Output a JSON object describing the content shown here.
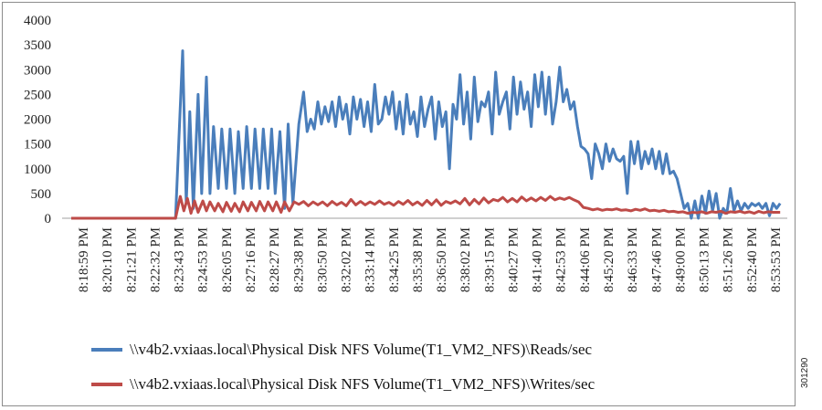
{
  "figure_id": "301290",
  "chart_data": {
    "type": "line",
    "title": "",
    "xlabel": "",
    "ylabel": "",
    "ylim": [
      0,
      4000
    ],
    "yticks": [
      0,
      500,
      1000,
      1500,
      2000,
      2500,
      3000,
      3500,
      4000
    ],
    "grid": false,
    "legend_position": "bottom",
    "x_tick_labels": [
      "8:18:59 PM",
      "8:20:10 PM",
      "8:21:21 PM",
      "8:22:32 PM",
      "8:23:43 PM",
      "8:24:53 PM",
      "8:26:05 PM",
      "8:27:16 PM",
      "8:28:27 PM",
      "8:29:38 PM",
      "8:30:50 PM",
      "8:32:02 PM",
      "8:33:14 PM",
      "8:34:25 PM",
      "8:35:38 PM",
      "8:36:50 PM",
      "8:38:02 PM",
      "8:39:15 PM",
      "8:40:27 PM",
      "8:41:40 PM",
      "8:42:53 PM",
      "8:44:06 PM",
      "8:45:20 PM",
      "8:46:33 PM",
      "8:47:46 PM",
      "8:49:00 PM",
      "8:50:13 PM",
      "8:51:26 PM",
      "8:52:40 PM",
      "8:53:53 PM"
    ],
    "x_range": [
      0,
      30.2
    ],
    "series": [
      {
        "name": "\\\\v4b2.vxiaas.local\\Physical Disk NFS Volume(T1_VM2_NFS)\\Reads/sec",
        "color": "#4a7ebb",
        "points": [
          [
            0,
            0
          ],
          [
            4.4,
            0
          ],
          [
            4.7,
            3380
          ],
          [
            4.85,
            300
          ],
          [
            5.0,
            2150
          ],
          [
            5.15,
            200
          ],
          [
            5.35,
            2500
          ],
          [
            5.5,
            500
          ],
          [
            5.7,
            2850
          ],
          [
            5.85,
            500
          ],
          [
            6.0,
            1850
          ],
          [
            6.2,
            600
          ],
          [
            6.35,
            1800
          ],
          [
            6.55,
            600
          ],
          [
            6.7,
            1800
          ],
          [
            6.9,
            500
          ],
          [
            7.05,
            1750
          ],
          [
            7.25,
            600
          ],
          [
            7.4,
            1850
          ],
          [
            7.6,
            600
          ],
          [
            7.75,
            1800
          ],
          [
            7.95,
            600
          ],
          [
            8.1,
            1800
          ],
          [
            8.3,
            600
          ],
          [
            8.45,
            1800
          ],
          [
            8.6,
            500
          ],
          [
            8.8,
            1750
          ],
          [
            9.0,
            200
          ],
          [
            9.15,
            1900
          ],
          [
            9.35,
            300
          ],
          [
            9.6,
            1900
          ],
          [
            9.8,
            2550
          ],
          [
            9.95,
            1750
          ],
          [
            10.1,
            2000
          ],
          [
            10.25,
            1800
          ],
          [
            10.4,
            2350
          ],
          [
            10.55,
            1900
          ],
          [
            10.7,
            2250
          ],
          [
            10.85,
            1950
          ],
          [
            11.0,
            2350
          ],
          [
            11.15,
            1850
          ],
          [
            11.3,
            2450
          ],
          [
            11.45,
            2000
          ],
          [
            11.6,
            2300
          ],
          [
            11.75,
            1700
          ],
          [
            11.9,
            2450
          ],
          [
            12.05,
            2000
          ],
          [
            12.2,
            2400
          ],
          [
            12.35,
            1850
          ],
          [
            12.5,
            2350
          ],
          [
            12.65,
            1750
          ],
          [
            12.8,
            2700
          ],
          [
            12.95,
            1900
          ],
          [
            13.1,
            2000
          ],
          [
            13.25,
            2450
          ],
          [
            13.4,
            2100
          ],
          [
            13.55,
            2550
          ],
          [
            13.7,
            1800
          ],
          [
            13.85,
            2350
          ],
          [
            14.0,
            1700
          ],
          [
            14.15,
            2500
          ],
          [
            14.3,
            1900
          ],
          [
            14.45,
            2150
          ],
          [
            14.6,
            1650
          ],
          [
            14.75,
            2450
          ],
          [
            14.9,
            1850
          ],
          [
            15.05,
            2200
          ],
          [
            15.2,
            2450
          ],
          [
            15.35,
            1600
          ],
          [
            15.5,
            2350
          ],
          [
            15.65,
            1850
          ],
          [
            15.8,
            2150
          ],
          [
            15.95,
            1000
          ],
          [
            16.1,
            2300
          ],
          [
            16.25,
            2000
          ],
          [
            16.4,
            2900
          ],
          [
            16.55,
            1900
          ],
          [
            16.7,
            2550
          ],
          [
            16.85,
            1600
          ],
          [
            17.0,
            2850
          ],
          [
            17.15,
            1950
          ],
          [
            17.3,
            2350
          ],
          [
            17.45,
            2250
          ],
          [
            17.6,
            2550
          ],
          [
            17.75,
            1700
          ],
          [
            17.9,
            2950
          ],
          [
            18.05,
            2100
          ],
          [
            18.2,
            2350
          ],
          [
            18.35,
            2550
          ],
          [
            18.5,
            1800
          ],
          [
            18.65,
            2850
          ],
          [
            18.8,
            2100
          ],
          [
            18.95,
            2750
          ],
          [
            19.1,
            2200
          ],
          [
            19.25,
            2550
          ],
          [
            19.4,
            1850
          ],
          [
            19.55,
            2900
          ],
          [
            19.7,
            2250
          ],
          [
            19.85,
            2950
          ],
          [
            20.0,
            2100
          ],
          [
            20.15,
            2850
          ],
          [
            20.3,
            1900
          ],
          [
            20.45,
            2350
          ],
          [
            20.6,
            3050
          ],
          [
            20.75,
            2350
          ],
          [
            20.9,
            2600
          ],
          [
            21.05,
            2200
          ],
          [
            21.2,
            2350
          ],
          [
            21.35,
            1850
          ],
          [
            21.5,
            1450
          ],
          [
            21.65,
            1400
          ],
          [
            21.8,
            1300
          ],
          [
            21.95,
            800
          ],
          [
            22.1,
            1500
          ],
          [
            22.25,
            1300
          ],
          [
            22.4,
            1000
          ],
          [
            22.55,
            1500
          ],
          [
            22.7,
            1150
          ],
          [
            22.85,
            1400
          ],
          [
            23.0,
            1200
          ],
          [
            23.15,
            1150
          ],
          [
            23.3,
            1250
          ],
          [
            23.45,
            500
          ],
          [
            23.6,
            1550
          ],
          [
            23.75,
            1100
          ],
          [
            23.9,
            1550
          ],
          [
            24.05,
            1000
          ],
          [
            24.2,
            1350
          ],
          [
            24.35,
            1100
          ],
          [
            24.5,
            1400
          ],
          [
            24.65,
            1000
          ],
          [
            24.8,
            1350
          ],
          [
            24.95,
            900
          ],
          [
            25.1,
            1300
          ],
          [
            25.25,
            900
          ],
          [
            25.4,
            950
          ],
          [
            25.55,
            800
          ],
          [
            25.7,
            500
          ],
          [
            25.85,
            200
          ],
          [
            26.0,
            300
          ],
          [
            26.15,
            0
          ],
          [
            26.3,
            350
          ],
          [
            26.45,
            0
          ],
          [
            26.6,
            450
          ],
          [
            26.75,
            100
          ],
          [
            26.9,
            550
          ],
          [
            27.05,
            150
          ],
          [
            27.2,
            500
          ],
          [
            27.35,
            0
          ],
          [
            27.5,
            200
          ],
          [
            27.65,
            100
          ],
          [
            27.8,
            600
          ],
          [
            27.95,
            150
          ],
          [
            28.1,
            350
          ],
          [
            28.25,
            150
          ],
          [
            28.4,
            300
          ],
          [
            28.55,
            200
          ],
          [
            28.7,
            300
          ],
          [
            28.85,
            250
          ],
          [
            29.0,
            300
          ],
          [
            29.15,
            200
          ],
          [
            29.3,
            300
          ],
          [
            29.45,
            50
          ],
          [
            29.6,
            300
          ],
          [
            29.75,
            200
          ],
          [
            29.9,
            300
          ]
        ]
      },
      {
        "name": "\\\\v4b2.vxiaas.local\\Physical Disk NFS Volume(T1_VM2_NFS)\\Writes/sec",
        "color": "#be4b48",
        "points": [
          [
            0,
            0
          ],
          [
            4.4,
            0
          ],
          [
            4.6,
            440
          ],
          [
            4.75,
            150
          ],
          [
            4.9,
            400
          ],
          [
            5.05,
            100
          ],
          [
            5.2,
            350
          ],
          [
            5.35,
            120
          ],
          [
            5.55,
            350
          ],
          [
            5.7,
            150
          ],
          [
            5.85,
            330
          ],
          [
            6.05,
            150
          ],
          [
            6.2,
            300
          ],
          [
            6.4,
            130
          ],
          [
            6.55,
            320
          ],
          [
            6.75,
            140
          ],
          [
            6.9,
            300
          ],
          [
            7.1,
            130
          ],
          [
            7.25,
            330
          ],
          [
            7.45,
            150
          ],
          [
            7.6,
            320
          ],
          [
            7.8,
            150
          ],
          [
            7.95,
            340
          ],
          [
            8.15,
            150
          ],
          [
            8.3,
            330
          ],
          [
            8.5,
            150
          ],
          [
            8.65,
            330
          ],
          [
            8.85,
            120
          ],
          [
            9.0,
            330
          ],
          [
            9.2,
            150
          ],
          [
            9.4,
            330
          ],
          [
            9.6,
            280
          ],
          [
            9.8,
            340
          ],
          [
            10.0,
            250
          ],
          [
            10.2,
            330
          ],
          [
            10.4,
            270
          ],
          [
            10.6,
            330
          ],
          [
            10.8,
            250
          ],
          [
            11.0,
            340
          ],
          [
            11.2,
            270
          ],
          [
            11.4,
            320
          ],
          [
            11.6,
            250
          ],
          [
            11.8,
            380
          ],
          [
            12.0,
            270
          ],
          [
            12.2,
            340
          ],
          [
            12.4,
            270
          ],
          [
            12.6,
            330
          ],
          [
            12.8,
            280
          ],
          [
            13.0,
            350
          ],
          [
            13.2,
            280
          ],
          [
            13.4,
            320
          ],
          [
            13.6,
            260
          ],
          [
            13.8,
            340
          ],
          [
            14.0,
            280
          ],
          [
            14.2,
            360
          ],
          [
            14.4,
            270
          ],
          [
            14.6,
            330
          ],
          [
            14.8,
            260
          ],
          [
            15.0,
            360
          ],
          [
            15.2,
            270
          ],
          [
            15.4,
            370
          ],
          [
            15.6,
            260
          ],
          [
            15.8,
            340
          ],
          [
            16.0,
            300
          ],
          [
            16.2,
            350
          ],
          [
            16.4,
            290
          ],
          [
            16.6,
            400
          ],
          [
            16.8,
            270
          ],
          [
            17.0,
            380
          ],
          [
            17.2,
            290
          ],
          [
            17.4,
            410
          ],
          [
            17.6,
            310
          ],
          [
            17.8,
            380
          ],
          [
            18.0,
            350
          ],
          [
            18.2,
            420
          ],
          [
            18.4,
            330
          ],
          [
            18.6,
            400
          ],
          [
            18.8,
            330
          ],
          [
            19.0,
            430
          ],
          [
            19.2,
            350
          ],
          [
            19.4,
            410
          ],
          [
            19.6,
            350
          ],
          [
            19.8,
            420
          ],
          [
            20.0,
            360
          ],
          [
            20.2,
            440
          ],
          [
            20.4,
            370
          ],
          [
            20.6,
            410
          ],
          [
            20.8,
            380
          ],
          [
            21.0,
            420
          ],
          [
            21.2,
            370
          ],
          [
            21.4,
            330
          ],
          [
            21.6,
            220
          ],
          [
            21.8,
            200
          ],
          [
            22.0,
            170
          ],
          [
            22.2,
            190
          ],
          [
            22.4,
            160
          ],
          [
            22.6,
            180
          ],
          [
            22.8,
            170
          ],
          [
            23.0,
            190
          ],
          [
            23.2,
            160
          ],
          [
            23.4,
            170
          ],
          [
            23.6,
            150
          ],
          [
            23.8,
            180
          ],
          [
            24.0,
            160
          ],
          [
            24.2,
            190
          ],
          [
            24.4,
            150
          ],
          [
            24.6,
            160
          ],
          [
            24.8,
            140
          ],
          [
            25.0,
            160
          ],
          [
            25.2,
            130
          ],
          [
            25.4,
            140
          ],
          [
            25.6,
            120
          ],
          [
            25.8,
            130
          ],
          [
            26.0,
            100
          ],
          [
            26.2,
            120
          ],
          [
            26.4,
            110
          ],
          [
            26.6,
            130
          ],
          [
            26.8,
            100
          ],
          [
            27.0,
            130
          ],
          [
            27.2,
            120
          ],
          [
            27.4,
            140
          ],
          [
            27.6,
            100
          ],
          [
            27.8,
            130
          ],
          [
            28.0,
            120
          ],
          [
            28.2,
            140
          ],
          [
            28.4,
            110
          ],
          [
            28.6,
            130
          ],
          [
            28.8,
            100
          ],
          [
            29.0,
            140
          ],
          [
            29.2,
            110
          ],
          [
            29.4,
            130
          ],
          [
            29.6,
            120
          ],
          [
            29.9,
            120
          ]
        ]
      }
    ]
  }
}
